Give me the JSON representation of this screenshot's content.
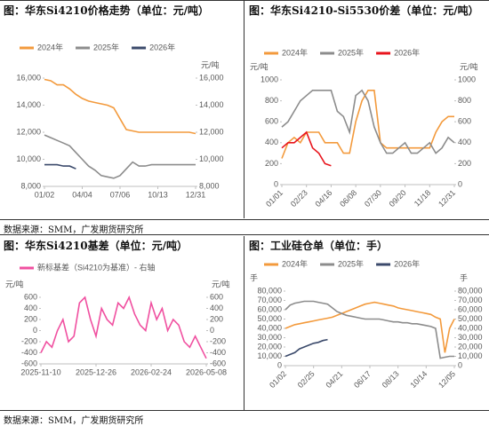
{
  "sources": [
    "数据来源：SMM，广发期货研究所",
    "数据来源：SMM，广发期货研究所"
  ],
  "chart_data": [
    {
      "type": "line",
      "title": "图：华东Si4210价格走势（单位：元/吨）",
      "y2_unit": "元/吨",
      "categories": [
        "01/02",
        null,
        null,
        null,
        null,
        null,
        "04/04",
        null,
        null,
        null,
        null,
        null,
        "07/06",
        null,
        null,
        null,
        null,
        null,
        "10/13",
        null,
        null,
        null,
        null,
        null,
        "12/31"
      ],
      "ylim": [
        8000,
        16000
      ],
      "yticks": [
        {
          "value": 8000,
          "label": "8,000"
        },
        {
          "value": 10000,
          "label": "10,000"
        },
        {
          "value": 12000,
          "label": "12,000"
        },
        {
          "value": 14000,
          "label": "14,000"
        },
        {
          "value": 16000,
          "label": "16,000"
        }
      ],
      "y2lim": [
        8000,
        16000
      ],
      "y2ticks": [
        {
          "value": 8000,
          "label": "8,000"
        },
        {
          "value": 10000,
          "label": "10,000"
        },
        {
          "value": 12000,
          "label": "12,000"
        },
        {
          "value": 14000,
          "label": "14,000"
        },
        {
          "value": 16000,
          "label": "16,000"
        }
      ],
      "series": [
        {
          "name": "2024年",
          "color": "#f39a3c",
          "values": [
            15900,
            15800,
            15500,
            15500,
            15200,
            14800,
            14500,
            14300,
            14200,
            14100,
            14000,
            13800,
            13000,
            12200,
            12100,
            12000,
            12000,
            12000,
            12000,
            12000,
            12000,
            12000,
            12000,
            12000,
            11900
          ]
        },
        {
          "name": "2025年",
          "color": "#8c8c8c",
          "values": [
            11800,
            11600,
            11400,
            11200,
            11000,
            10500,
            10000,
            9500,
            9200,
            8800,
            8700,
            8600,
            8800,
            9300,
            9800,
            9500,
            9500,
            9600,
            9600,
            9600,
            9600,
            9600,
            9600,
            9600,
            9600
          ]
        },
        {
          "name": "2026年",
          "color": "#3b4a6b",
          "values": [
            9600,
            9600,
            9600,
            9500,
            9500,
            9300,
            null,
            null,
            null,
            null,
            null,
            null,
            null,
            null,
            null,
            null,
            null,
            null,
            null,
            null,
            null,
            null,
            null,
            null,
            null
          ]
        }
      ]
    },
    {
      "type": "line",
      "title": "图：华东Si4210-Si5530价差（单位：元/吨）",
      "y_unit": "元/吨",
      "y2_unit": "元/吨",
      "categories": [
        "01/01",
        null,
        null,
        null,
        "02/23",
        null,
        null,
        null,
        "04/16",
        null,
        null,
        null,
        "06/08",
        null,
        null,
        null,
        "07/30",
        null,
        null,
        null,
        "09/20",
        null,
        null,
        null,
        "11/18",
        null,
        null,
        null,
        "12/31"
      ],
      "ylim": [
        0,
        1000
      ],
      "yticks": [
        0,
        200,
        400,
        600,
        800,
        1000
      ],
      "y2lim": [
        0,
        1000
      ],
      "y2ticks": [
        0,
        200,
        400,
        600,
        800,
        1000
      ],
      "series": [
        {
          "name": "2024年",
          "color": "#f39a3c",
          "values": [
            250,
            400,
            450,
            400,
            500,
            500,
            500,
            400,
            400,
            400,
            300,
            300,
            600,
            800,
            900,
            900,
            400,
            350,
            350,
            350,
            350,
            350,
            350,
            350,
            350,
            500,
            600,
            650,
            650
          ]
        },
        {
          "name": "2025年",
          "color": "#8c8c8c",
          "values": [
            550,
            600,
            700,
            800,
            850,
            900,
            900,
            900,
            900,
            700,
            650,
            500,
            850,
            900,
            800,
            550,
            400,
            300,
            300,
            350,
            400,
            300,
            300,
            350,
            400,
            300,
            350,
            450,
            400
          ]
        },
        {
          "name": "2026年",
          "color": "#e8141c",
          "values": [
            350,
            400,
            400,
            450,
            500,
            350,
            300,
            200,
            180,
            null,
            null,
            null,
            null,
            null,
            null,
            null,
            null,
            null,
            null,
            null,
            null,
            null,
            null,
            null,
            null,
            null,
            null,
            null,
            null
          ]
        }
      ]
    },
    {
      "type": "line",
      "title": "图：华东Si4210基差（单位：元/吨）",
      "y_unit": "元/吨",
      "y2_unit": "元/吨",
      "categories": [
        "2025-11-10",
        null,
        null,
        null,
        null,
        null,
        null,
        null,
        null,
        null,
        "2025-12-26",
        null,
        null,
        null,
        null,
        null,
        null,
        null,
        null,
        null,
        "2026-02-24",
        null,
        null,
        null,
        null,
        null,
        null,
        null,
        null,
        null,
        "2026-05-08"
      ],
      "ylim": [
        -600,
        600
      ],
      "yticks": [
        -600,
        -400,
        -200,
        0,
        200,
        400,
        600
      ],
      "y2lim": [
        -600,
        600
      ],
      "y2ticks": [
        -600,
        -400,
        -200,
        0,
        200,
        400,
        600
      ],
      "series": [
        {
          "name": "新标基差（Si4210为基准）- 右轴",
          "color": "#f050a0",
          "axis": "y2",
          "values": [
            -400,
            -200,
            -300,
            0,
            200,
            -200,
            -100,
            500,
            600,
            200,
            -100,
            400,
            200,
            100,
            500,
            400,
            600,
            300,
            100,
            0,
            500,
            200,
            400,
            0,
            200,
            100,
            -200,
            -300,
            -100,
            -300,
            -500
          ]
        }
      ]
    },
    {
      "type": "line",
      "title": "图：工业硅仓单（单位：手）",
      "y_unit": "手",
      "y2_unit": "手",
      "categories": [
        "01/02",
        null,
        null,
        null,
        null,
        null,
        "02/25",
        null,
        null,
        null,
        null,
        null,
        "04/21",
        null,
        null,
        null,
        null,
        null,
        "06/17",
        null,
        null,
        null,
        null,
        null,
        "08/13",
        null,
        null,
        null,
        null,
        null,
        "10/14",
        null,
        null,
        null,
        null,
        null,
        "12/05"
      ],
      "ylim": [
        0,
        80000
      ],
      "yticks": [
        0,
        {
          "value": 10000,
          "label": "10,000"
        },
        {
          "value": 20000,
          "label": "20,000"
        },
        {
          "value": 30000,
          "label": "30,000"
        },
        {
          "value": 40000,
          "label": "40,000"
        },
        {
          "value": 50000,
          "label": "50,000"
        },
        {
          "value": 60000,
          "label": "60,000"
        },
        {
          "value": 70000,
          "label": "70,000"
        },
        {
          "value": 80000,
          "label": "80,000"
        }
      ],
      "y2lim": [
        0,
        80000
      ],
      "y2ticks": [
        0,
        {
          "value": 10000,
          "label": "10,000"
        },
        {
          "value": 20000,
          "label": "20,000"
        },
        {
          "value": 30000,
          "label": "30,000"
        },
        {
          "value": 40000,
          "label": "40,000"
        },
        {
          "value": 50000,
          "label": "50,000"
        },
        {
          "value": 60000,
          "label": "60,000"
        },
        {
          "value": 70000,
          "label": "70,000"
        },
        {
          "value": 80000,
          "label": "80,000"
        }
      ],
      "series": [
        {
          "name": "2024年",
          "color": "#f39a3c",
          "values": [
            40000,
            42000,
            44000,
            45000,
            46000,
            47000,
            48000,
            49000,
            50000,
            51000,
            52000,
            54000,
            56000,
            58000,
            60000,
            62000,
            64000,
            66000,
            67000,
            68000,
            67000,
            66000,
            65000,
            64000,
            62000,
            61000,
            60000,
            59000,
            58000,
            57000,
            56000,
            55000,
            52000,
            50000,
            14000,
            40000,
            50000
          ]
        },
        {
          "name": "2025年",
          "color": "#8c8c8c",
          "values": [
            60000,
            65000,
            67000,
            68000,
            69000,
            69000,
            69000,
            68000,
            67000,
            66000,
            62000,
            58000,
            56000,
            54000,
            53000,
            52000,
            51000,
            50000,
            50000,
            50000,
            50000,
            49000,
            48000,
            47000,
            47000,
            46000,
            46000,
            45000,
            45000,
            44000,
            43000,
            42000,
            40000,
            8000,
            9000,
            10000,
            10000
          ]
        },
        {
          "name": "2026年",
          "color": "#3b4a6b",
          "values": [
            10000,
            12000,
            14000,
            18000,
            20000,
            22000,
            24000,
            25000,
            27000,
            28000,
            null,
            null,
            null,
            null,
            null,
            null,
            null,
            null,
            null,
            null,
            null,
            null,
            null,
            null,
            null,
            null,
            null,
            null,
            null,
            null,
            null,
            null,
            null,
            null,
            null,
            null,
            null
          ]
        }
      ]
    }
  ]
}
